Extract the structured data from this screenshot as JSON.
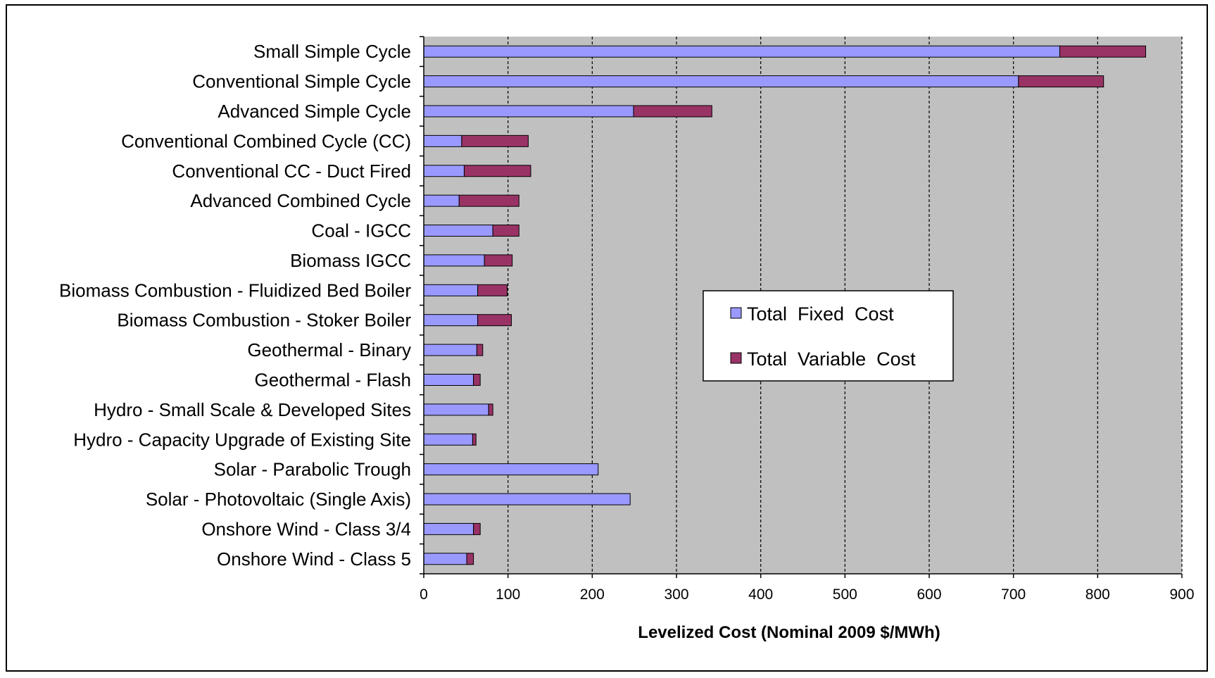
{
  "chart_data": {
    "type": "bar",
    "orientation": "horizontal",
    "stacked": true,
    "title": "",
    "xlabel": "Levelized Cost (Nominal 2009 $/MWh)",
    "ylabel": "",
    "xlim": [
      0,
      900
    ],
    "xticks": [
      "0",
      "100",
      "200",
      "300",
      "400",
      "500",
      "600",
      "700",
      "800",
      "900"
    ],
    "grid": "vertical dashed",
    "legend_position": "center-right",
    "categories": [
      "Small Simple Cycle",
      "Conventional  Simple Cycle",
      "Advanced Simple Cycle",
      "Conventional  Combined Cycle (CC)",
      "Conventional  CC - Duct Fired",
      "Advanced Combined Cycle",
      "Coal - IGCC",
      "Biomass IGCC",
      "Biomass Combustion - Fluidized Bed Boiler",
      "Biomass Combustion - Stoker Boiler",
      "Geothermal - Binary",
      "Geothermal - Flash",
      "Hydro - Small Scale & Developed Sites",
      "Hydro - Capacity Upgrade of Existing Site",
      "Solar - Parabolic Trough",
      "Solar - Photovoltaic (Single Axis)",
      "Onshore Wind - Class 3/4",
      "Onshore Wind - Class 5"
    ],
    "series": [
      {
        "name": "Total  Fixed  Cost",
        "color": "#9999ff",
        "values": [
          755,
          706,
          249,
          45,
          48,
          42,
          82,
          72,
          64,
          64,
          63,
          59,
          77,
          58,
          207,
          245,
          59,
          51
        ]
      },
      {
        "name": "Total  Variable  Cost",
        "color": "#993366",
        "values": [
          102,
          101,
          93,
          79,
          79,
          71,
          31,
          33,
          35,
          40,
          7,
          8,
          5,
          4,
          0,
          0,
          8,
          8
        ]
      }
    ]
  }
}
